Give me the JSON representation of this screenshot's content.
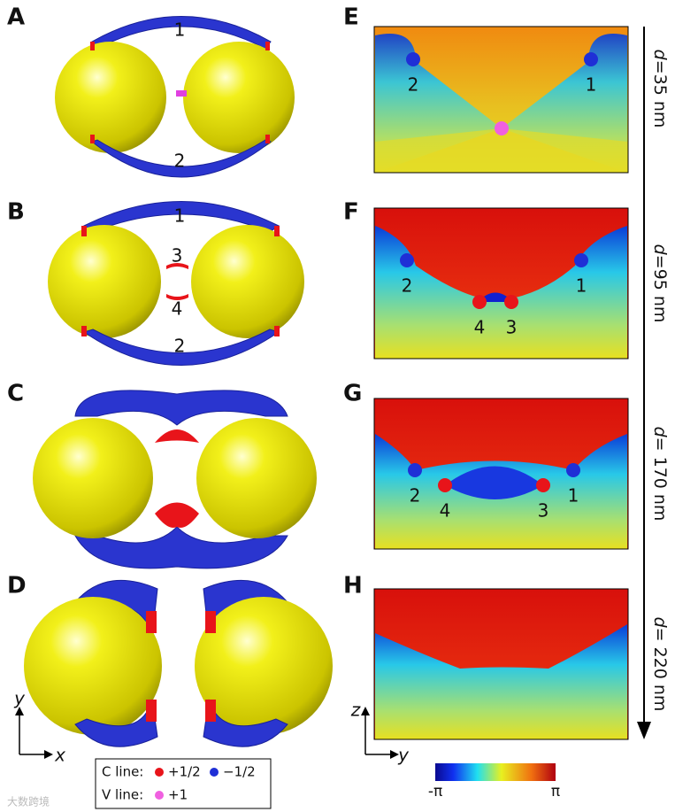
{
  "left_panels": [
    {
      "label": "A",
      "numbers": [
        "1",
        "2"
      ]
    },
    {
      "label": "B",
      "numbers": [
        "1",
        "3",
        "4",
        "2"
      ]
    },
    {
      "label": "C"
    },
    {
      "label": "D"
    }
  ],
  "right_panels": [
    {
      "label": "E",
      "distance": "=35 nm",
      "points": [
        {
          "label": "2",
          "color": "#1f2fd6"
        },
        {
          "label": "1",
          "color": "#1f2fd6"
        },
        {
          "color": "#f060e0"
        }
      ]
    },
    {
      "label": "F",
      "distance": "=95 nm",
      "points": [
        {
          "label": "2",
          "color": "#1f2fd6"
        },
        {
          "label": "1",
          "color": "#1f2fd6"
        },
        {
          "label": "4",
          "color": "#e8141a"
        },
        {
          "label": "3",
          "color": "#e8141a"
        }
      ]
    },
    {
      "label": "G",
      "distance": "= 170 nm",
      "points": [
        {
          "label": "2",
          "color": "#1f2fd6"
        },
        {
          "label": "4",
          "color": "#e8141a"
        },
        {
          "label": "3",
          "color": "#e8141a"
        },
        {
          "label": "1",
          "color": "#1f2fd6"
        }
      ]
    },
    {
      "label": "H",
      "distance": "= 220 nm"
    }
  ],
  "distance_symbol": "d",
  "left_axes": {
    "vertical": "y",
    "horizontal": "x"
  },
  "right_axes": {
    "vertical": "z",
    "horizontal": "y"
  },
  "legend": {
    "c_line": "C line:",
    "c_plus": {
      "label": "+1/2",
      "color": "#e8141a"
    },
    "c_minus": {
      "label": "−1/2",
      "color": "#1f2fd6"
    },
    "v_line": "V line:",
    "v_plus": {
      "label": "+1",
      "color": "#f060e0"
    }
  },
  "colorbar": {
    "min": "-π",
    "max": "π"
  },
  "watermark": "大数跨境"
}
